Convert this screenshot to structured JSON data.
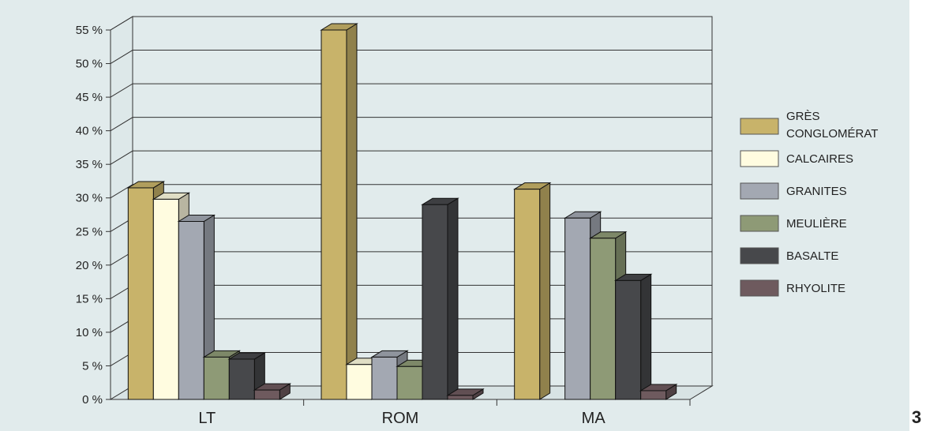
{
  "figure_number": "3",
  "chart_data": {
    "type": "bar",
    "title": "",
    "xlabel": "",
    "ylabel": "",
    "ylim": [
      0,
      55
    ],
    "yticks": [
      "0 %",
      "5 %",
      "10 %",
      "15 %",
      "20 %",
      "25 %",
      "30 %",
      "35 %",
      "40 %",
      "45 %",
      "50 %",
      "55 %"
    ],
    "categories": [
      "LT",
      "ROM",
      "MA"
    ],
    "legend_position": "right",
    "grid": true,
    "series": [
      {
        "name": "GRÈS CONGLOMÉRAT",
        "legend_lines": [
          "GRÈS",
          "CONGLOMÉRAT"
        ],
        "color": "#c8b36a",
        "values": [
          31.5,
          55,
          31.3
        ]
      },
      {
        "name": "CALCAIRES",
        "legend_lines": [
          "CALCAIRES"
        ],
        "color": "#fffce0",
        "values": [
          29.8,
          5.2,
          0
        ]
      },
      {
        "name": "GRANITES",
        "legend_lines": [
          "GRANITES"
        ],
        "color": "#a3a8b2",
        "values": [
          26.5,
          6.3,
          27
        ]
      },
      {
        "name": "MEULIÈRE",
        "legend_lines": [
          "MEULIÈRE"
        ],
        "color": "#8e9a76",
        "values": [
          6.3,
          4.9,
          24
        ]
      },
      {
        "name": "BASALTE",
        "legend_lines": [
          "BASALTE"
        ],
        "color": "#47484b",
        "values": [
          6,
          29,
          17.7
        ]
      },
      {
        "name": "RHYOLITE",
        "legend_lines": [
          "RHYOLITE"
        ],
        "color": "#6e5a5e",
        "values": [
          1.4,
          0.6,
          1.3
        ]
      }
    ]
  }
}
